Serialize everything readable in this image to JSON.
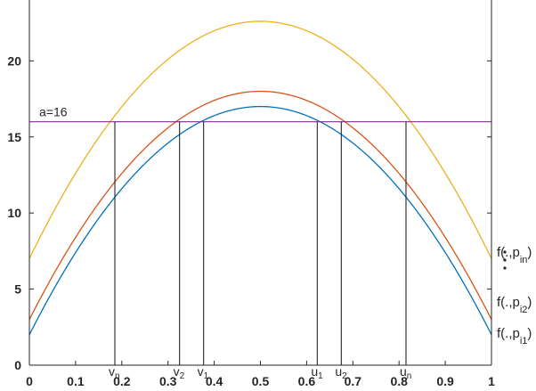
{
  "chart_data": {
    "type": "line",
    "xlim": [
      0,
      1
    ],
    "ylim": [
      0,
      24
    ],
    "x_ticks": [
      0,
      0.1,
      0.2,
      0.3,
      0.4,
      0.5,
      0.6,
      0.7,
      0.8,
      0.9,
      1
    ],
    "x_tick_labels": [
      "0",
      "0.1",
      "0.2",
      "0.3",
      "0.4",
      "0.5",
      "0.6",
      "0.7",
      "0.8",
      "0.9",
      "1"
    ],
    "y_ticks": [
      0,
      5,
      10,
      15,
      20
    ],
    "y_tick_labels": [
      "0",
      "5",
      "10",
      "15",
      "20"
    ],
    "grid": false,
    "series": [
      {
        "color": "#0072BD",
        "function": "parabola",
        "x": [
          0,
          0.1,
          0.2,
          0.3,
          0.4,
          0.5,
          0.6,
          0.7,
          0.8,
          0.9,
          1
        ],
        "y": [
          2,
          7.4,
          11.6,
          14.6,
          16.4,
          17,
          16.4,
          14.6,
          11.6,
          7.4,
          2
        ]
      },
      {
        "color": "#D95319",
        "function": "parabola",
        "x": [
          0,
          0.1,
          0.2,
          0.3,
          0.4,
          0.5,
          0.6,
          0.7,
          0.8,
          0.9,
          1
        ],
        "y": [
          3,
          8.4,
          12.6,
          15.6,
          17.4,
          18,
          17.4,
          15.6,
          12.6,
          8.4,
          3
        ]
      },
      {
        "color": "#EDB120",
        "function": "parabola",
        "x": [
          0,
          0.1,
          0.2,
          0.3,
          0.4,
          0.5,
          0.6,
          0.7,
          0.8,
          0.9,
          1
        ],
        "y": [
          7,
          12.6,
          16.9,
          20.1,
          22,
          22.6,
          22,
          20.1,
          16.9,
          12.6,
          7
        ]
      }
    ],
    "hline": {
      "y": 16,
      "color": "#7E2F8E",
      "label": "a=16"
    },
    "vlines": [
      {
        "x": 0.185,
        "label_main": "v",
        "label_sub": "n"
      },
      {
        "x": 0.325,
        "label_main": "v",
        "label_sub": "2"
      },
      {
        "x": 0.377,
        "label_main": "v",
        "label_sub": "1"
      },
      {
        "x": 0.623,
        "label_main": "u",
        "label_sub": "1"
      },
      {
        "x": 0.675,
        "label_main": "u",
        "label_sub": "2"
      },
      {
        "x": 0.815,
        "label_main": "u",
        "label_sub": "n"
      }
    ],
    "legend_labels": [
      {
        "main": "f(.,p",
        "sub": "in",
        "close": ")"
      },
      {
        "main": "f(.,p",
        "sub": "i2",
        "close": ")"
      },
      {
        "main": "f(.,p",
        "sub": "i1",
        "close": ")"
      }
    ],
    "dots_label": "⋮"
  },
  "colors": {
    "axis": "#262626",
    "line": "#262626"
  }
}
